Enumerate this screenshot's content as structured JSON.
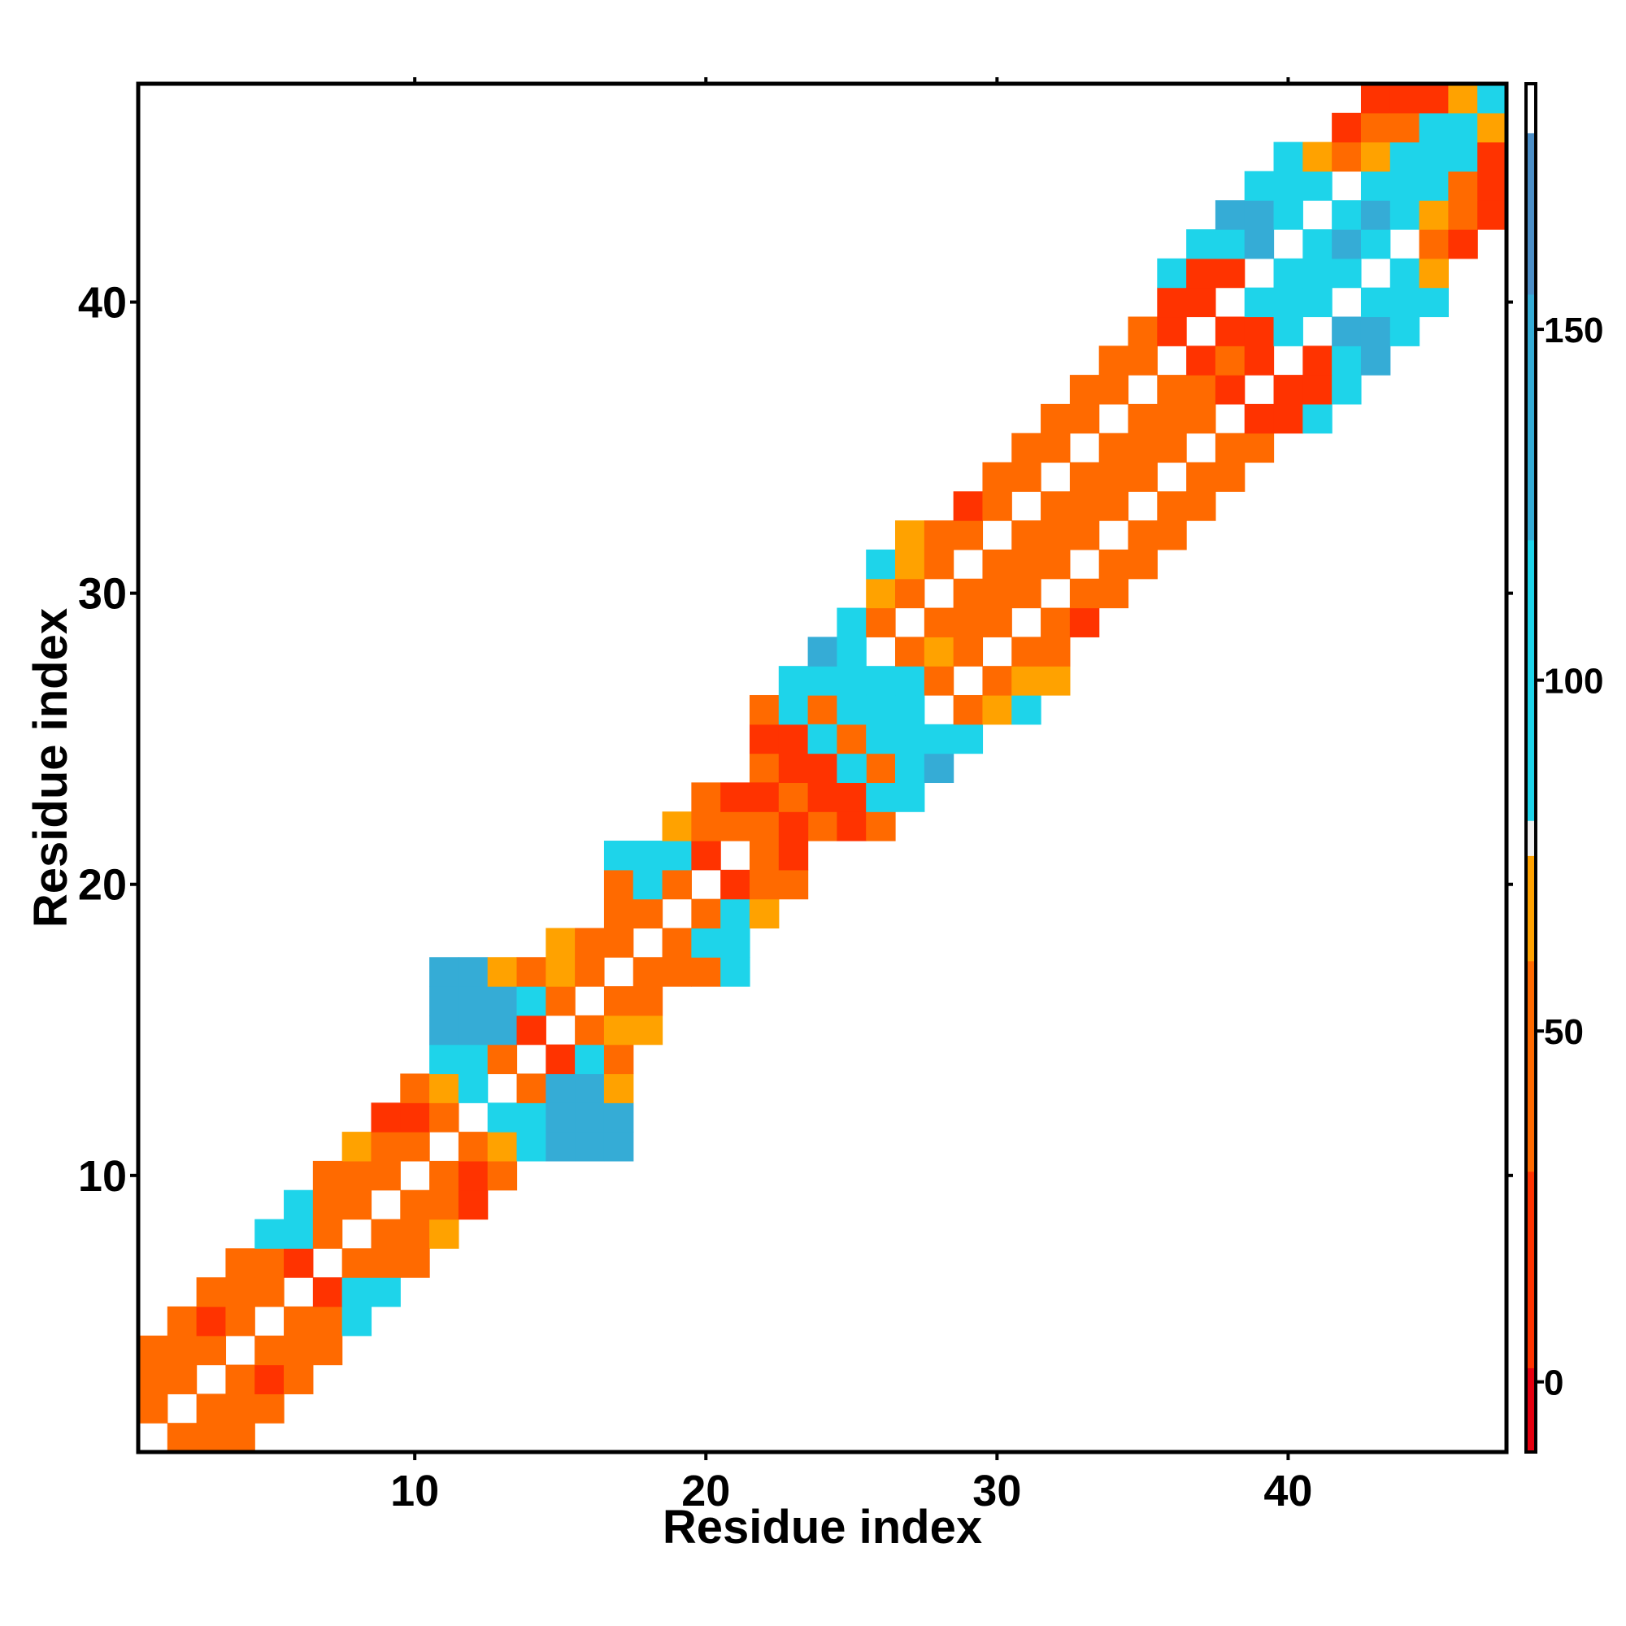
{
  "chart_data": {
    "type": "heatmap",
    "title": "",
    "xlabel": "Residue index",
    "ylabel": "Residue index",
    "xlim": [
      0.5,
      47.5
    ],
    "ylim": [
      0.5,
      47.5
    ],
    "x_ticks": [
      10,
      20,
      30,
      40
    ],
    "y_ticks": [
      10,
      20,
      30,
      40
    ],
    "grid": false,
    "diagonal_blank": true,
    "colorbar": {
      "range": [
        -10,
        185
      ],
      "ticks": [
        0,
        50,
        100,
        150
      ],
      "palette": [
        {
          "from": -10,
          "to": 2,
          "color": "#e6000f"
        },
        {
          "from": 2,
          "to": 30,
          "color": "#ff3300"
        },
        {
          "from": 30,
          "to": 60,
          "color": "#ff6a00"
        },
        {
          "from": 60,
          "to": 75,
          "color": "#ffa200"
        },
        {
          "from": 75,
          "to": 80,
          "color": "#f0f0f0"
        },
        {
          "from": 80,
          "to": 120,
          "color": "#1ed4ea"
        },
        {
          "from": 120,
          "to": 155,
          "color": "#35acd6"
        },
        {
          "from": 155,
          "to": 178,
          "color": "#4b8ec7"
        },
        {
          "from": 178,
          "to": 185,
          "color": "#ffffff"
        }
      ]
    },
    "cells": [
      [
        2,
        1,
        45
      ],
      [
        3,
        1,
        38
      ],
      [
        4,
        1,
        40
      ],
      [
        1,
        2,
        42
      ],
      [
        3,
        2,
        42
      ],
      [
        4,
        2,
        38
      ],
      [
        5,
        2,
        40
      ],
      [
        1,
        3,
        42
      ],
      [
        2,
        3,
        38
      ],
      [
        4,
        3,
        42
      ],
      [
        5,
        3,
        26
      ],
      [
        6,
        3,
        38
      ],
      [
        1,
        4,
        42
      ],
      [
        2,
        4,
        45
      ],
      [
        3,
        4,
        42
      ],
      [
        5,
        4,
        42
      ],
      [
        6,
        4,
        42
      ],
      [
        7,
        4,
        45
      ],
      [
        2,
        5,
        42
      ],
      [
        3,
        5,
        26
      ],
      [
        4,
        5,
        40
      ],
      [
        6,
        5,
        42
      ],
      [
        7,
        5,
        58
      ],
      [
        8,
        5,
        100
      ],
      [
        3,
        6,
        42
      ],
      [
        4,
        6,
        42
      ],
      [
        5,
        6,
        45
      ],
      [
        7,
        6,
        5
      ],
      [
        8,
        6,
        100
      ],
      [
        9,
        6,
        100
      ],
      [
        4,
        7,
        45
      ],
      [
        5,
        7,
        58
      ],
      [
        6,
        7,
        5
      ],
      [
        8,
        7,
        45
      ],
      [
        9,
        7,
        58
      ],
      [
        5,
        8,
        100
      ],
      [
        6,
        8,
        100
      ],
      [
        7,
        8,
        42
      ],
      [
        9,
        8,
        42
      ],
      [
        10,
        8,
        42
      ],
      [
        11,
        8,
        65
      ],
      [
        6,
        9,
        100
      ],
      [
        7,
        9,
        58
      ],
      [
        8,
        9,
        42
      ],
      [
        10,
        9,
        42
      ],
      [
        11,
        9,
        38
      ],
      [
        12,
        9,
        18
      ],
      [
        7,
        10,
        58
      ],
      [
        8,
        10,
        42
      ],
      [
        9,
        10,
        42
      ],
      [
        11,
        10,
        42
      ],
      [
        12,
        10,
        18
      ],
      [
        13,
        10,
        42
      ],
      [
        8,
        11,
        65
      ],
      [
        9,
        11,
        38
      ],
      [
        10,
        11,
        42
      ],
      [
        12,
        11,
        42
      ],
      [
        13,
        11,
        65
      ],
      [
        14,
        11,
        105
      ],
      [
        15,
        11,
        120
      ],
      [
        16,
        11,
        150
      ],
      [
        17,
        11,
        120
      ],
      [
        9,
        12,
        18
      ],
      [
        10,
        12,
        18
      ],
      [
        11,
        12,
        42
      ],
      [
        13,
        12,
        100
      ],
      [
        14,
        12,
        90
      ],
      [
        15,
        12,
        120
      ],
      [
        16,
        12,
        150
      ],
      [
        17,
        12,
        120
      ],
      [
        10,
        13,
        42
      ],
      [
        11,
        13,
        65
      ],
      [
        12,
        13,
        100
      ],
      [
        14,
        13,
        42
      ],
      [
        15,
        13,
        120
      ],
      [
        16,
        13,
        120
      ],
      [
        17,
        13,
        65
      ],
      [
        11,
        14,
        100
      ],
      [
        12,
        14,
        90
      ],
      [
        13,
        14,
        42
      ],
      [
        15,
        14,
        5
      ],
      [
        16,
        14,
        100
      ],
      [
        17,
        14,
        58
      ],
      [
        11,
        15,
        110
      ],
      [
        12,
        15,
        110
      ],
      [
        13,
        15,
        110
      ],
      [
        14,
        15,
        5
      ],
      [
        16,
        15,
        42
      ],
      [
        17,
        15,
        65
      ],
      [
        18,
        15,
        65
      ],
      [
        11,
        16,
        150
      ],
      [
        12,
        16,
        150
      ],
      [
        13,
        16,
        100
      ],
      [
        14,
        16,
        100
      ],
      [
        15,
        16,
        42
      ],
      [
        17,
        16,
        42
      ],
      [
        18,
        16,
        42
      ],
      [
        11,
        17,
        110
      ],
      [
        12,
        17,
        110
      ],
      [
        13,
        17,
        65
      ],
      [
        14,
        17,
        58
      ],
      [
        15,
        17,
        65
      ],
      [
        16,
        17,
        42
      ],
      [
        18,
        17,
        42
      ],
      [
        19,
        17,
        38
      ],
      [
        20,
        17,
        58
      ],
      [
        21,
        17,
        100
      ],
      [
        15,
        18,
        65
      ],
      [
        16,
        18,
        42
      ],
      [
        17,
        18,
        42
      ],
      [
        19,
        18,
        42
      ],
      [
        20,
        18,
        90
      ],
      [
        21,
        18,
        100
      ],
      [
        17,
        19,
        38
      ],
      [
        18,
        19,
        42
      ],
      [
        20,
        19,
        42
      ],
      [
        21,
        19,
        90
      ],
      [
        22,
        19,
        65
      ],
      [
        17,
        20,
        58
      ],
      [
        18,
        20,
        90
      ],
      [
        19,
        20,
        42
      ],
      [
        21,
        20,
        5
      ],
      [
        22,
        20,
        58
      ],
      [
        23,
        20,
        42
      ],
      [
        17,
        21,
        100
      ],
      [
        18,
        21,
        100
      ],
      [
        19,
        21,
        90
      ],
      [
        20,
        21,
        5
      ],
      [
        22,
        21,
        42
      ],
      [
        23,
        21,
        18
      ],
      [
        20,
        22,
        65
      ],
      [
        21,
        22,
        42
      ],
      [
        22,
        22,
        42
      ],
      [
        24,
        22,
        42
      ],
      [
        25,
        22,
        12
      ],
      [
        26,
        22,
        58
      ],
      [
        21,
        23,
        42
      ],
      [
        22,
        23,
        18
      ],
      [
        23,
        23,
        42
      ],
      [
        25,
        23,
        12
      ],
      [
        26,
        23,
        90
      ],
      [
        27,
        23,
        110
      ],
      [
        23,
        24,
        12
      ],
      [
        24,
        24,
        8
      ],
      [
        26,
        24,
        42
      ],
      [
        27,
        24,
        110
      ],
      [
        28,
        24,
        120
      ],
      [
        23,
        25,
        58
      ],
      [
        24,
        25,
        90
      ],
      [
        25,
        25,
        42
      ],
      [
        27,
        25,
        110
      ],
      [
        28,
        25,
        110
      ],
      [
        29,
        25,
        110
      ],
      [
        25,
        26,
        110
      ],
      [
        26,
        26,
        110
      ],
      [
        27,
        26,
        110
      ],
      [
        29,
        26,
        42
      ],
      [
        30,
        26,
        65
      ],
      [
        31,
        26,
        90
      ],
      [
        26,
        27,
        120
      ],
      [
        27,
        27,
        110
      ],
      [
        28,
        27,
        42
      ],
      [
        30,
        27,
        42
      ],
      [
        31,
        27,
        65
      ],
      [
        32,
        27,
        65
      ],
      [
        27,
        28,
        110
      ],
      [
        28,
        28,
        65
      ],
      [
        29,
        28,
        42
      ],
      [
        31,
        28,
        42
      ],
      [
        32,
        28,
        38
      ],
      [
        28,
        29,
        90
      ],
      [
        29,
        29,
        58
      ],
      [
        30,
        29,
        42
      ],
      [
        32,
        29,
        58
      ],
      [
        33,
        29,
        18
      ],
      [
        29,
        30,
        58
      ],
      [
        30,
        30,
        38
      ],
      [
        31,
        30,
        42
      ],
      [
        33,
        30,
        42
      ],
      [
        34,
        30,
        38
      ],
      [
        30,
        31,
        18
      ],
      [
        31,
        31,
        42
      ],
      [
        32,
        31,
        42
      ],
      [
        34,
        31,
        42
      ],
      [
        35,
        31,
        42
      ],
      [
        31,
        32,
        42
      ],
      [
        32,
        32,
        42
      ],
      [
        33,
        32,
        42
      ],
      [
        35,
        32,
        42
      ],
      [
        36,
        32,
        42
      ],
      [
        32,
        33,
        42
      ],
      [
        33,
        33,
        42
      ],
      [
        34,
        33,
        42
      ],
      [
        36,
        33,
        42
      ],
      [
        37,
        33,
        42
      ],
      [
        33,
        34,
        42
      ],
      [
        34,
        34,
        42
      ],
      [
        35,
        34,
        42
      ],
      [
        37,
        34,
        42
      ],
      [
        38,
        34,
        42
      ],
      [
        34,
        35,
        42
      ],
      [
        35,
        35,
        42
      ],
      [
        36,
        35,
        42
      ],
      [
        38,
        35,
        42
      ],
      [
        39,
        35,
        42
      ],
      [
        35,
        36,
        42
      ],
      [
        36,
        36,
        42
      ],
      [
        37,
        36,
        42
      ],
      [
        39,
        36,
        12
      ],
      [
        40,
        36,
        12
      ],
      [
        41,
        36,
        90
      ],
      [
        36,
        37,
        42
      ],
      [
        37,
        37,
        42
      ],
      [
        38,
        37,
        12
      ],
      [
        40,
        37,
        5
      ],
      [
        41,
        37,
        12
      ],
      [
        42,
        37,
        90
      ],
      [
        37,
        38,
        42
      ],
      [
        38,
        38,
        42
      ],
      [
        39,
        38,
        12
      ],
      [
        41,
        38,
        12
      ],
      [
        42,
        38,
        100
      ],
      [
        43,
        38,
        120
      ],
      [
        38,
        39,
        12
      ],
      [
        39,
        39,
        5
      ],
      [
        40,
        39,
        100
      ],
      [
        42,
        39,
        120
      ],
      [
        43,
        39,
        150
      ],
      [
        44,
        39,
        110
      ],
      [
        39,
        40,
        90
      ],
      [
        40,
        40,
        90
      ],
      [
        41,
        40,
        110
      ],
      [
        43,
        40,
        110
      ],
      [
        44,
        40,
        110
      ],
      [
        45,
        40,
        110
      ],
      [
        40,
        41,
        110
      ],
      [
        41,
        41,
        110
      ],
      [
        42,
        41,
        100
      ],
      [
        44,
        41,
        110
      ],
      [
        45,
        41,
        65
      ],
      [
        41,
        42,
        120
      ],
      [
        42,
        42,
        120
      ],
      [
        43,
        42,
        110
      ],
      [
        45,
        42,
        42
      ],
      [
        46,
        42,
        18
      ],
      [
        43,
        43,
        150
      ],
      [
        44,
        43,
        110
      ],
      [
        45,
        43,
        65
      ],
      [
        46,
        43,
        42
      ],
      [
        47,
        43,
        12
      ],
      [
        44,
        44,
        110
      ],
      [
        45,
        44,
        110
      ],
      [
        46,
        44,
        42
      ],
      [
        47,
        44,
        18
      ],
      [
        45,
        45,
        110
      ],
      [
        46,
        45,
        110
      ],
      [
        47,
        45,
        12
      ],
      [
        46,
        46,
        110
      ],
      [
        47,
        46,
        65
      ],
      [
        47,
        47,
        110
      ]
    ]
  }
}
